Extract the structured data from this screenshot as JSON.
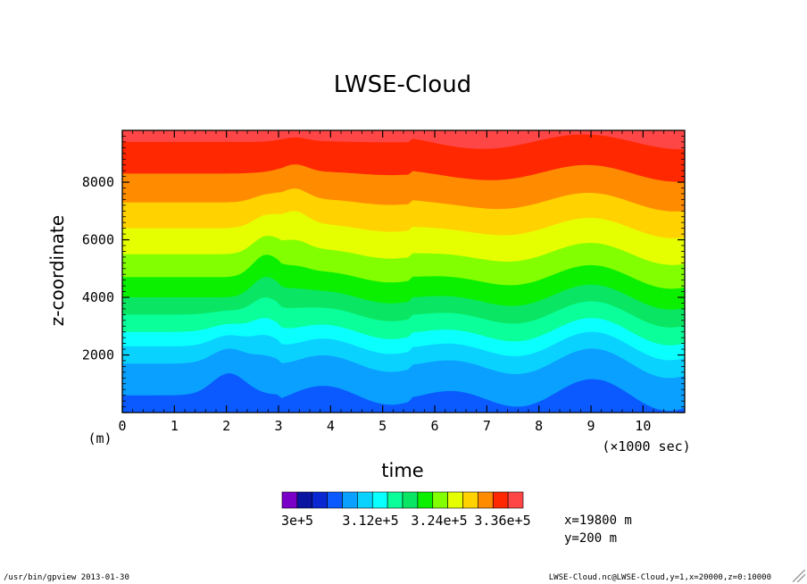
{
  "chart_data": {
    "type": "heatmap",
    "title": "LWSE-Cloud",
    "xlabel": "time",
    "ylabel": "z-coordinate",
    "x_unit_label": "(×1000 sec)",
    "y_unit_label": "(m)",
    "xlim": [
      0,
      10.8
    ],
    "ylim": [
      0,
      9800
    ],
    "x_ticks": [
      "0",
      "1",
      "2",
      "3",
      "4",
      "5",
      "6",
      "7",
      "8",
      "9",
      "10"
    ],
    "y_ticks": [
      "2000",
      "4000",
      "6000",
      "8000"
    ],
    "colorbar": {
      "labels": [
        "3e+5",
        "3.12e+5",
        "3.24e+5",
        "3.36e+5"
      ],
      "colors": [
        "#7a00c8",
        "#0a14a0",
        "#0a28d2",
        "#0a5aff",
        "#0aa0ff",
        "#0ad2ff",
        "#0affff",
        "#0aff9a",
        "#0ae664",
        "#0af000",
        "#82ff00",
        "#e6ff00",
        "#ffd200",
        "#ff8c00",
        "#ff2800",
        "#ff4646"
      ]
    },
    "annotations": [
      "x=19800 m",
      "y=200 m"
    ]
  },
  "footer": {
    "left": "/usr/bin/gpview  2013-01-30",
    "right": "LWSE-Cloud.nc@LWSE-Cloud,y=1,x=20000,z=0:10000"
  }
}
